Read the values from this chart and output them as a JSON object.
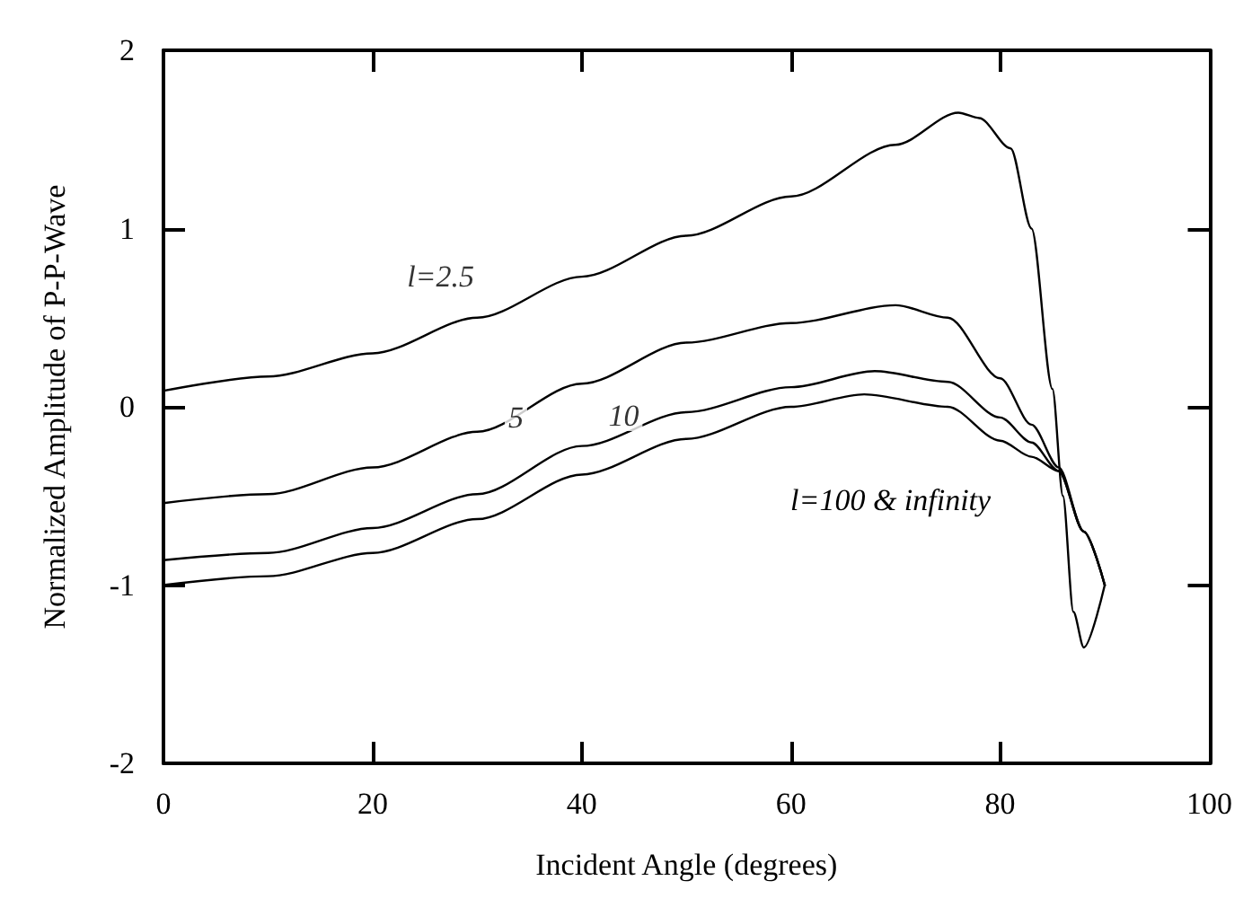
{
  "chart_data": {
    "type": "line",
    "xlabel": "Incident Angle (degrees)",
    "ylabel": "Normalized Amplitude of P-P-Wave",
    "xlim": [
      0,
      100
    ],
    "xticks": [
      0,
      20,
      40,
      60,
      80,
      100
    ],
    "ylim": [
      -2,
      2
    ],
    "yticks": [
      -2,
      -1,
      0,
      1,
      2
    ],
    "grid": false,
    "marker": "none",
    "line_style": "solid",
    "series": [
      {
        "color": "#000000",
        "x": [
          0,
          10,
          20,
          30,
          40,
          50,
          60,
          70,
          76,
          78,
          81,
          83,
          85,
          86,
          87,
          88,
          90
        ],
        "values": [
          0.09,
          0.17,
          0.3,
          0.5,
          0.73,
          0.96,
          1.18,
          1.47,
          1.65,
          1.62,
          1.45,
          1.0,
          0.1,
          -0.5,
          -1.15,
          -1.35,
          -1.0
        ]
      },
      {
        "color": "#000000",
        "x": [
          0,
          10,
          20,
          30,
          40,
          50,
          60,
          70,
          75,
          80,
          83,
          85.6,
          88,
          90
        ],
        "values": [
          -0.54,
          -0.49,
          -0.34,
          -0.14,
          0.13,
          0.36,
          0.47,
          0.57,
          0.5,
          0.16,
          -0.1,
          -0.34,
          -0.7,
          -1.0
        ]
      },
      {
        "color": "#000000",
        "x": [
          0,
          10,
          20,
          30,
          40,
          50,
          60,
          68,
          75,
          80,
          83,
          85.6,
          88,
          90
        ],
        "values": [
          -0.86,
          -0.82,
          -0.68,
          -0.49,
          -0.22,
          -0.03,
          0.11,
          0.2,
          0.14,
          -0.06,
          -0.2,
          -0.36,
          -0.7,
          -1.0
        ]
      },
      {
        "color": "#000000",
        "x": [
          0,
          10,
          20,
          30,
          40,
          50,
          60,
          67,
          75,
          80,
          83,
          85.6,
          88,
          90
        ],
        "values": [
          -1.0,
          -0.95,
          -0.82,
          -0.63,
          -0.38,
          -0.18,
          0.0,
          0.07,
          0.0,
          -0.19,
          -0.28,
          -0.36,
          -0.7,
          -1.0
        ]
      }
    ],
    "annotations": [
      {
        "text": "l=2.5",
        "x": 26.5,
        "y": 0.73
      },
      {
        "text": "5",
        "x": 33.7,
        "y": -0.06
      },
      {
        "text": "10",
        "x": 44,
        "y": -0.05
      },
      "l=100 & infinity"
    ]
  }
}
